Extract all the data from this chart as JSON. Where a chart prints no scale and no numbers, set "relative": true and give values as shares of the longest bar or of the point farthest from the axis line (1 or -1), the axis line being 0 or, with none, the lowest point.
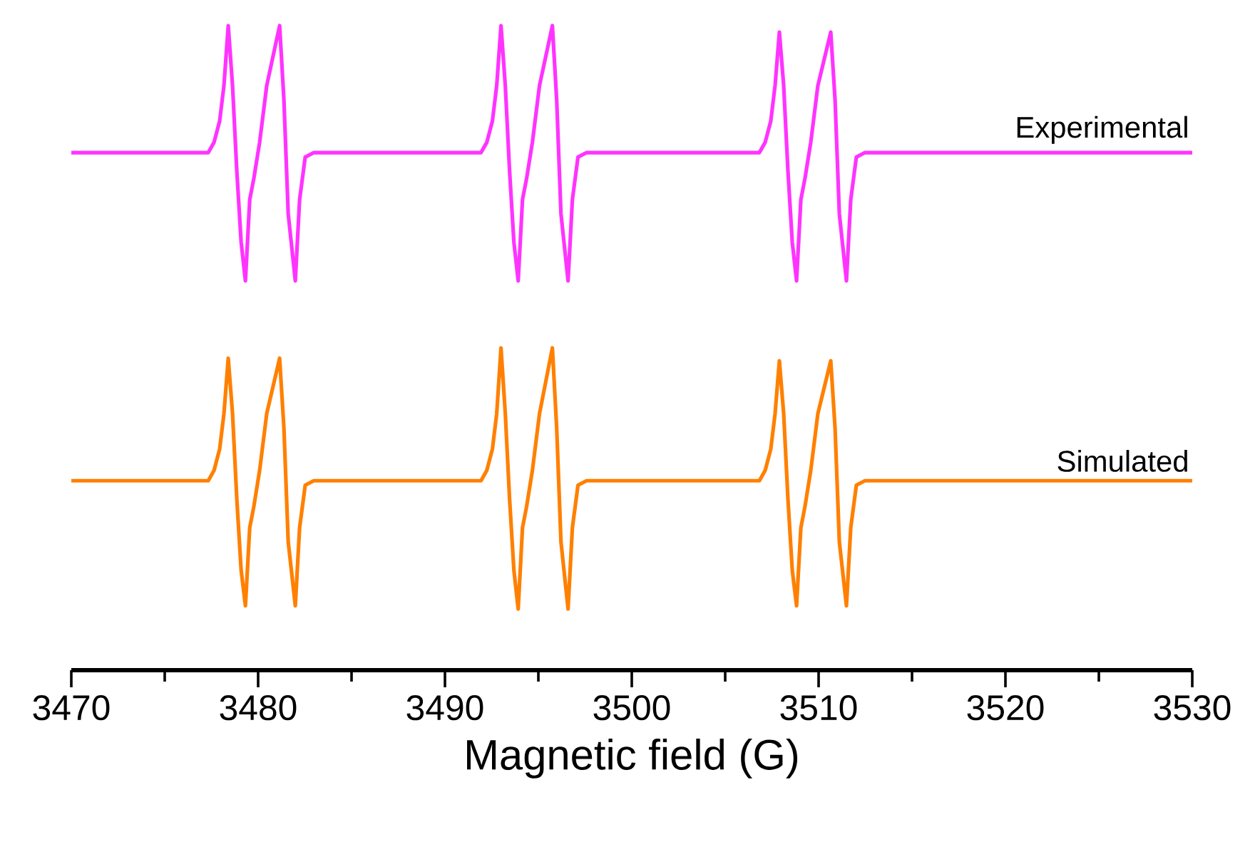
{
  "chart_data": {
    "type": "line",
    "xlabel": "Magnetic field (G)",
    "relative": true,
    "xlim": [
      3470,
      3530
    ],
    "xticks": [
      3470,
      3480,
      3490,
      3500,
      3510,
      3520,
      3530
    ],
    "series": [
      {
        "name": "Experimental",
        "color": "#ff33ff",
        "x": [
          3470,
          3477.33,
          3477.64,
          3477.94,
          3478.17,
          3478.4,
          3478.63,
          3478.86,
          3479.09,
          3479.32,
          3479.55,
          3479.77,
          3480.08,
          3480.46,
          3481.15,
          3481.38,
          3481.61,
          3481.99,
          3482.22,
          3482.52,
          3482.98,
          3491.93,
          3492.24,
          3492.54,
          3492.77,
          3493.0,
          3493.23,
          3493.46,
          3493.69,
          3493.92,
          3494.15,
          3494.37,
          3494.68,
          3495.06,
          3495.75,
          3495.98,
          3496.21,
          3496.59,
          3496.82,
          3497.12,
          3497.58,
          3506.83,
          3507.14,
          3507.44,
          3507.67,
          3507.9,
          3508.13,
          3508.36,
          3508.59,
          3508.82,
          3509.05,
          3509.27,
          3509.58,
          3509.96,
          3510.65,
          3510.88,
          3511.11,
          3511.49,
          3511.72,
          3512.02,
          3512.48,
          3530
        ],
        "values": [
          0.803,
          0.803,
          0.819,
          0.852,
          0.907,
          1.0,
          0.907,
          0.774,
          0.664,
          0.604,
          0.73,
          0.763,
          0.819,
          0.907,
          1.0,
          0.885,
          0.708,
          0.604,
          0.73,
          0.796,
          0.803,
          0.803,
          0.819,
          0.852,
          0.907,
          1.0,
          0.907,
          0.774,
          0.664,
          0.604,
          0.73,
          0.763,
          0.819,
          0.907,
          1.0,
          0.885,
          0.708,
          0.604,
          0.73,
          0.796,
          0.803,
          0.803,
          0.819,
          0.852,
          0.907,
          0.99,
          0.907,
          0.774,
          0.664,
          0.604,
          0.73,
          0.763,
          0.819,
          0.907,
          0.99,
          0.885,
          0.708,
          0.604,
          0.73,
          0.796,
          0.803,
          0.803
        ]
      },
      {
        "name": "Simulated",
        "color": "#ff8000",
        "x": [
          3470,
          3477.33,
          3477.64,
          3477.94,
          3478.17,
          3478.4,
          3478.63,
          3478.86,
          3479.09,
          3479.32,
          3479.55,
          3479.77,
          3480.08,
          3480.46,
          3481.15,
          3481.38,
          3481.61,
          3481.99,
          3482.22,
          3482.52,
          3482.98,
          3491.93,
          3492.24,
          3492.54,
          3492.77,
          3493.0,
          3493.23,
          3493.46,
          3493.69,
          3493.92,
          3494.15,
          3494.37,
          3494.68,
          3495.06,
          3495.75,
          3495.98,
          3496.21,
          3496.59,
          3496.82,
          3497.12,
          3497.58,
          3506.83,
          3507.14,
          3507.44,
          3507.67,
          3507.9,
          3508.13,
          3508.36,
          3508.59,
          3508.82,
          3509.05,
          3509.27,
          3509.58,
          3509.96,
          3510.65,
          3510.88,
          3511.11,
          3511.49,
          3511.72,
          3512.02,
          3512.48,
          3530
        ],
        "values": [
          0.294,
          0.294,
          0.31,
          0.343,
          0.398,
          0.484,
          0.398,
          0.265,
          0.155,
          0.1,
          0.221,
          0.254,
          0.31,
          0.398,
          0.484,
          0.376,
          0.199,
          0.1,
          0.221,
          0.287,
          0.294,
          0.294,
          0.31,
          0.343,
          0.398,
          0.5,
          0.398,
          0.265,
          0.155,
          0.095,
          0.221,
          0.254,
          0.31,
          0.398,
          0.5,
          0.376,
          0.199,
          0.095,
          0.221,
          0.287,
          0.294,
          0.294,
          0.31,
          0.343,
          0.398,
          0.48,
          0.398,
          0.265,
          0.155,
          0.1,
          0.221,
          0.254,
          0.31,
          0.398,
          0.48,
          0.376,
          0.199,
          0.1,
          0.221,
          0.287,
          0.294,
          0.294
        ]
      }
    ]
  }
}
